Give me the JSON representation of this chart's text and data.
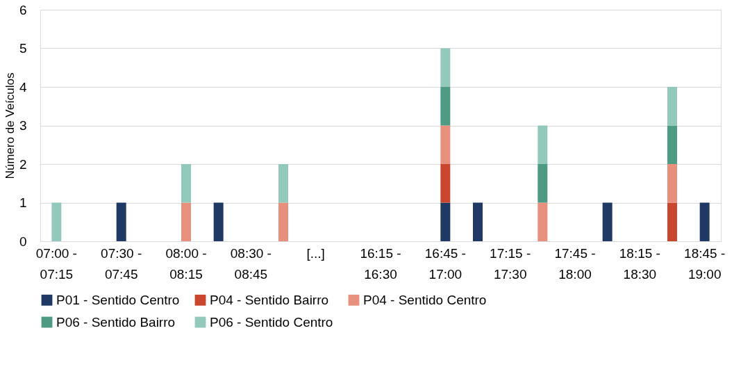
{
  "chart_data": {
    "type": "bar",
    "stacked": true,
    "ylabel": "Número de Veículos",
    "categories": [
      "07:00 -\n07:15",
      null,
      "07:30 -\n07:45",
      null,
      "08:00 -\n08:15",
      null,
      "08:30 -\n08:45",
      null,
      "[...]",
      null,
      "16:15 -\n16:30",
      null,
      "16:45 -\n17:00",
      null,
      "17:15 -\n17:30",
      null,
      "17:45 -\n18:00",
      null,
      "18:15 -\n18:30",
      null,
      "18:45 -\n19:00"
    ],
    "series": [
      {
        "name": "P01 - Sentido Centro",
        "color": "#1f3864",
        "values": [
          null,
          null,
          1,
          null,
          null,
          1,
          null,
          null,
          null,
          null,
          null,
          null,
          1,
          1,
          null,
          null,
          null,
          1,
          null,
          null,
          1
        ]
      },
      {
        "name": "P04 - Sentido Bairro",
        "color": "#c8472e",
        "values": [
          null,
          null,
          null,
          null,
          null,
          null,
          null,
          null,
          null,
          null,
          null,
          null,
          1,
          null,
          null,
          null,
          null,
          null,
          null,
          1,
          null
        ]
      },
      {
        "name": "P04 - Sentido Centro",
        "color": "#e8907e",
        "values": [
          null,
          null,
          null,
          null,
          1,
          null,
          null,
          1,
          null,
          null,
          null,
          null,
          1,
          null,
          null,
          1,
          null,
          null,
          null,
          1,
          null
        ]
      },
      {
        "name": "P06 - Sentido Bairro",
        "color": "#4e9a82",
        "values": [
          null,
          null,
          null,
          null,
          null,
          null,
          null,
          null,
          null,
          null,
          null,
          null,
          1,
          null,
          null,
          1,
          null,
          null,
          null,
          1,
          null
        ]
      },
      {
        "name": "P06 - Sentido Centro",
        "color": "#93c9bb",
        "values": [
          1,
          null,
          null,
          null,
          1,
          null,
          null,
          1,
          null,
          null,
          null,
          null,
          1,
          null,
          null,
          1,
          null,
          null,
          null,
          1,
          null
        ]
      }
    ],
    "ylim": [
      0,
      6
    ],
    "yticks": [
      0,
      1,
      2,
      3,
      4,
      5,
      6
    ],
    "grid": "y",
    "legend": "bottom"
  }
}
